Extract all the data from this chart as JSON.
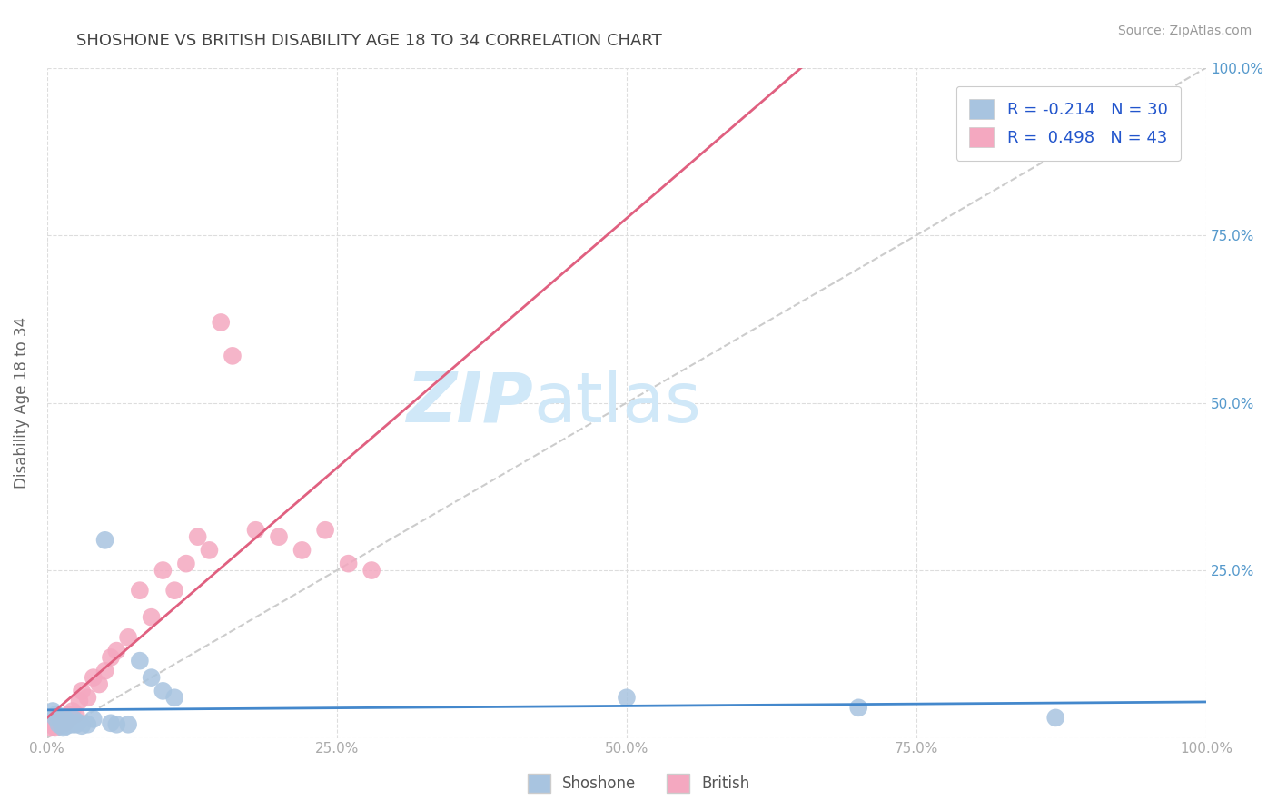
{
  "title": "SHOSHONE VS BRITISH DISABILITY AGE 18 TO 34 CORRELATION CHART",
  "source_text": "Source: ZipAtlas.com",
  "ylabel": "Disability Age 18 to 34",
  "xlim": [
    0,
    1.0
  ],
  "ylim": [
    0,
    1.0
  ],
  "xtick_labels": [
    "0.0%",
    "25.0%",
    "50.0%",
    "75.0%",
    "100.0%"
  ],
  "xtick_vals": [
    0.0,
    0.25,
    0.5,
    0.75,
    1.0
  ],
  "ytick_vals": [
    0.0,
    0.25,
    0.5,
    0.75,
    1.0
  ],
  "right_ytick_labels": [
    "",
    "25.0%",
    "50.0%",
    "75.0%",
    "100.0%"
  ],
  "shoshone_color": "#a8c4e0",
  "british_color": "#f4a8c0",
  "shoshone_R": -0.214,
  "shoshone_N": 30,
  "british_R": 0.498,
  "british_N": 43,
  "legend_R_color": "#2255cc",
  "shoshone_line_color": "#4488cc",
  "british_line_color": "#e06080",
  "diagonal_color": "#cccccc",
  "watermark_color": "#d0e8f8",
  "grid_color": "#dddddd",
  "background_color": "#ffffff",
  "title_color": "#444444",
  "axis_label_color": "#666666",
  "tick_color": "#aaaaaa",
  "shoshone_x": [
    0.005,
    0.007,
    0.008,
    0.01,
    0.012,
    0.013,
    0.014,
    0.015,
    0.016,
    0.017,
    0.018,
    0.02,
    0.022,
    0.023,
    0.025,
    0.027,
    0.03,
    0.035,
    0.04,
    0.05,
    0.055,
    0.06,
    0.07,
    0.08,
    0.09,
    0.1,
    0.11,
    0.5,
    0.7,
    0.87
  ],
  "shoshone_y": [
    0.04,
    0.03,
    0.035,
    0.02,
    0.025,
    0.018,
    0.015,
    0.03,
    0.022,
    0.018,
    0.025,
    0.022,
    0.02,
    0.028,
    0.02,
    0.023,
    0.018,
    0.02,
    0.028,
    0.295,
    0.022,
    0.02,
    0.02,
    0.115,
    0.09,
    0.07,
    0.06,
    0.06,
    0.045,
    0.03
  ],
  "british_x": [
    0.003,
    0.005,
    0.006,
    0.007,
    0.008,
    0.009,
    0.01,
    0.011,
    0.012,
    0.013,
    0.014,
    0.015,
    0.016,
    0.017,
    0.018,
    0.019,
    0.02,
    0.022,
    0.025,
    0.028,
    0.03,
    0.035,
    0.04,
    0.045,
    0.05,
    0.055,
    0.06,
    0.07,
    0.08,
    0.09,
    0.1,
    0.11,
    0.12,
    0.13,
    0.14,
    0.15,
    0.16,
    0.18,
    0.2,
    0.22,
    0.24,
    0.26,
    0.28
  ],
  "british_y": [
    0.015,
    0.02,
    0.018,
    0.015,
    0.022,
    0.018,
    0.025,
    0.02,
    0.022,
    0.03,
    0.025,
    0.028,
    0.022,
    0.03,
    0.028,
    0.035,
    0.03,
    0.04,
    0.035,
    0.055,
    0.07,
    0.06,
    0.09,
    0.08,
    0.1,
    0.12,
    0.13,
    0.15,
    0.22,
    0.18,
    0.25,
    0.22,
    0.26,
    0.3,
    0.28,
    0.62,
    0.57,
    0.31,
    0.3,
    0.28,
    0.31,
    0.26,
    0.25
  ]
}
